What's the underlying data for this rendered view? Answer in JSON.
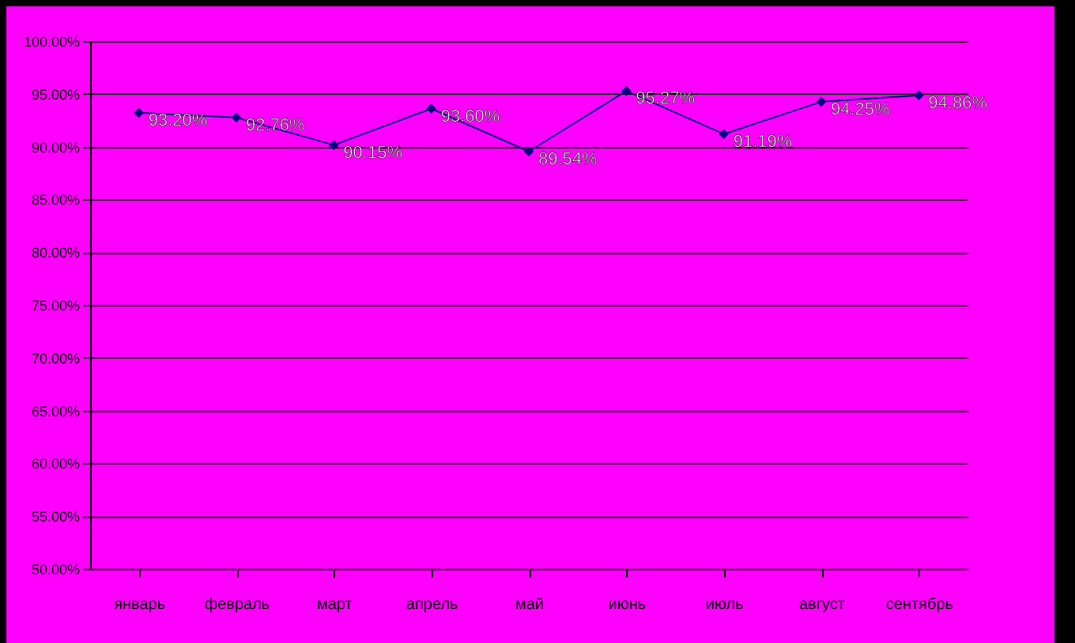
{
  "chart_data": {
    "type": "line",
    "categories": [
      "январь",
      "февраль",
      "март",
      "апрель",
      "май",
      "июнь",
      "июль",
      "август",
      "сентябрь"
    ],
    "series": [
      {
        "color": "#000080",
        "values": [
          93.2,
          92.76,
          90.15,
          93.6,
          89.54,
          95.27,
          91.19,
          94.25,
          94.86
        ],
        "value_labels": [
          "93.20%",
          "92.76%",
          "90.15%",
          "93.60%",
          "89.54%",
          "95.27%",
          "91.19%",
          "94.25%",
          "94.86%"
        ]
      }
    ],
    "ylim": [
      50,
      100
    ],
    "yticks": [
      {
        "value": 50,
        "label": "50.00%"
      },
      {
        "value": 55,
        "label": "55.00%"
      },
      {
        "value": 60,
        "label": "60.00%"
      },
      {
        "value": 65,
        "label": "65.00%"
      },
      {
        "value": 70,
        "label": "70.00%"
      },
      {
        "value": 75,
        "label": "75.00%"
      },
      {
        "value": 80,
        "label": "80.00%"
      },
      {
        "value": 85,
        "label": "85.00%"
      },
      {
        "value": 90,
        "label": "90.00%"
      },
      {
        "value": 95,
        "label": "95.00%"
      },
      {
        "value": 100,
        "label": "100.00%"
      }
    ],
    "grid": "y",
    "marker": "diamond",
    "line_style": "solid",
    "legend": false
  }
}
